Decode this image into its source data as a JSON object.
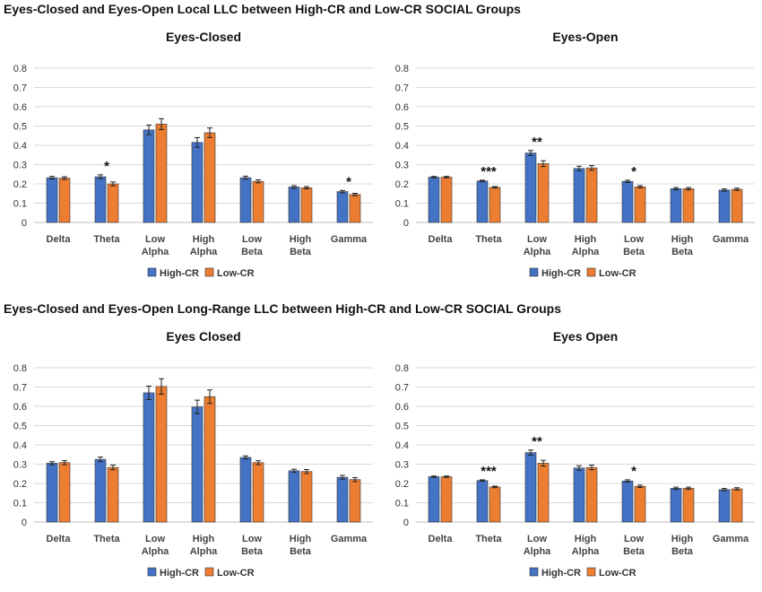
{
  "section_titles": [
    "Eyes-Closed and Eyes-Open Local LLC between High-CR and Low-CR SOCIAL Groups",
    "Eyes-Closed and Eyes-Open Long-Range LLC between High-CR and Low-CR SOCIAL Groups"
  ],
  "colors": {
    "high": "#4472C4",
    "low": "#ED7D31",
    "grid": "#d9d9d9",
    "axis": "#bfbfbf"
  },
  "chart_data": [
    {
      "type": "bar",
      "title": "Eyes-Closed",
      "categories": [
        [
          "Delta"
        ],
        [
          "Theta"
        ],
        [
          "Low",
          "Alpha"
        ],
        [
          "High",
          "Alpha"
        ],
        [
          "Low",
          "Beta"
        ],
        [
          "High",
          "Beta"
        ],
        [
          "Gamma"
        ]
      ],
      "ylim": [
        0,
        0.8
      ],
      "yticks": [
        "0",
        "0.1",
        "0.2",
        "0.3",
        "0.4",
        "0.5",
        "0.6",
        "0.7",
        "0.8"
      ],
      "series": [
        {
          "name": "High-CR",
          "color": "#4472C4",
          "values": [
            0.232,
            0.237,
            0.48,
            0.415,
            0.232,
            0.184,
            0.16
          ],
          "errors": [
            0.007,
            0.01,
            0.025,
            0.025,
            0.008,
            0.007,
            0.006
          ]
        },
        {
          "name": "Low-CR",
          "color": "#ED7D31",
          "values": [
            0.23,
            0.2,
            0.51,
            0.465,
            0.213,
            0.18,
            0.145
          ],
          "errors": [
            0.007,
            0.01,
            0.028,
            0.025,
            0.008,
            0.006,
            0.006
          ]
        }
      ],
      "annotations": [
        "",
        "*",
        "",
        "",
        "",
        "",
        "*"
      ]
    },
    {
      "type": "bar",
      "title": "Eyes-Open",
      "categories": [
        [
          "Delta"
        ],
        [
          "Theta"
        ],
        [
          "Low",
          "Alpha"
        ],
        [
          "High",
          "Alpha"
        ],
        [
          "Low",
          "Beta"
        ],
        [
          "High",
          "Beta"
        ],
        [
          "Gamma"
        ]
      ],
      "ylim": [
        0,
        0.8
      ],
      "yticks": [
        "0",
        "0.1",
        "0.2",
        "0.3",
        "0.4",
        "0.5",
        "0.6",
        "0.7",
        "0.8"
      ],
      "series": [
        {
          "name": "High-CR",
          "color": "#4472C4",
          "values": [
            0.235,
            0.215,
            0.36,
            0.28,
            0.213,
            0.175,
            0.168
          ],
          "errors": [
            0.004,
            0.004,
            0.013,
            0.012,
            0.006,
            0.006,
            0.006
          ]
        },
        {
          "name": "Low-CR",
          "color": "#ED7D31",
          "values": [
            0.235,
            0.182,
            0.305,
            0.283,
            0.185,
            0.175,
            0.172
          ],
          "errors": [
            0.004,
            0.004,
            0.015,
            0.012,
            0.006,
            0.006,
            0.006
          ]
        }
      ],
      "annotations": [
        "",
        "***",
        "**",
        "",
        "*",
        "",
        ""
      ]
    },
    {
      "type": "bar",
      "title": "Eyes Closed",
      "categories": [
        [
          "Delta"
        ],
        [
          "Theta"
        ],
        [
          "Low",
          "Alpha"
        ],
        [
          "High",
          "Alpha"
        ],
        [
          "Low",
          "Beta"
        ],
        [
          "High",
          "Beta"
        ],
        [
          "Gamma"
        ]
      ],
      "ylim": [
        0,
        0.8
      ],
      "yticks": [
        "0",
        "0.1",
        "0.2",
        "0.3",
        "0.4",
        "0.5",
        "0.6",
        "0.7",
        "0.8"
      ],
      "series": [
        {
          "name": "High-CR",
          "color": "#4472C4",
          "values": [
            0.305,
            0.325,
            0.67,
            0.597,
            0.335,
            0.266,
            0.232
          ],
          "errors": [
            0.008,
            0.012,
            0.035,
            0.035,
            0.008,
            0.008,
            0.01
          ]
        },
        {
          "name": "Low-CR",
          "color": "#ED7D31",
          "values": [
            0.308,
            0.283,
            0.703,
            0.65,
            0.308,
            0.262,
            0.22
          ],
          "errors": [
            0.01,
            0.012,
            0.04,
            0.035,
            0.01,
            0.01,
            0.01
          ]
        }
      ],
      "annotations": [
        "",
        "",
        "",
        "",
        "",
        "",
        ""
      ]
    },
    {
      "type": "bar",
      "title": "Eyes Open",
      "categories": [
        [
          "Delta"
        ],
        [
          "Theta"
        ],
        [
          "Low",
          "Alpha"
        ],
        [
          "High",
          "Alpha"
        ],
        [
          "Low",
          "Beta"
        ],
        [
          "High",
          "Beta"
        ],
        [
          "Gamma"
        ]
      ],
      "ylim": [
        0,
        0.8
      ],
      "yticks": [
        "0",
        "0.1",
        "0.2",
        "0.3",
        "0.4",
        "0.5",
        "0.6",
        "0.7",
        "0.8"
      ],
      "series": [
        {
          "name": "High-CR",
          "color": "#4472C4",
          "values": [
            0.235,
            0.215,
            0.36,
            0.28,
            0.213,
            0.175,
            0.168
          ],
          "errors": [
            0.004,
            0.004,
            0.013,
            0.012,
            0.006,
            0.006,
            0.006
          ]
        },
        {
          "name": "Low-CR",
          "color": "#ED7D31",
          "values": [
            0.235,
            0.182,
            0.305,
            0.283,
            0.185,
            0.175,
            0.172
          ],
          "errors": [
            0.004,
            0.004,
            0.015,
            0.012,
            0.006,
            0.006,
            0.006
          ]
        }
      ],
      "annotations": [
        "",
        "***",
        "**",
        "",
        "*",
        "",
        ""
      ]
    }
  ]
}
